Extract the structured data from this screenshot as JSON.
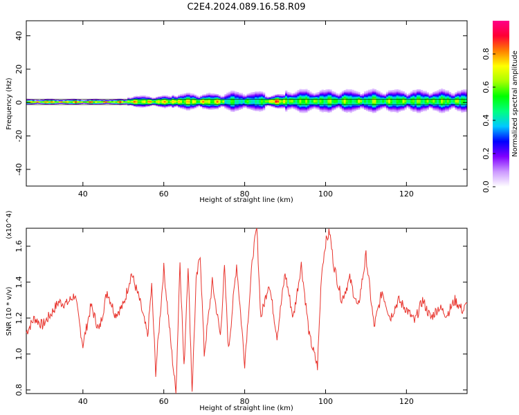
{
  "title": "C2E4.2024.089.16.58.R09",
  "chart_data": [
    {
      "type": "heatmap",
      "xlabel": "Height of straight line (km)",
      "ylabel": "Frequency (Hz)",
      "xlim": [
        26,
        135
      ],
      "ylim": [
        -50,
        49
      ],
      "xticks": [
        40,
        60,
        80,
        100,
        120
      ],
      "yticks": [
        -40,
        -20,
        0,
        20,
        40
      ],
      "colorbar": {
        "label": "Normalized spectral amplitude",
        "range": [
          0.0,
          1.0
        ],
        "ticks": [
          0.0,
          0.2,
          0.4,
          0.6,
          0.8
        ],
        "colormap": [
          "#ffffff",
          "#cc99ff",
          "#8000ff",
          "#0000ff",
          "#00c8ff",
          "#00ff80",
          "#00ff00",
          "#aaff00",
          "#ffff00",
          "#ff8000",
          "#ff0033",
          "#ff0088"
        ]
      },
      "bands": [
        {
          "x": [
            26,
            51
          ],
          "f_core": 0.6,
          "f_spread": 1.2,
          "amp": 0.95
        },
        {
          "x": [
            51,
            62
          ],
          "f_core": 1.0,
          "f_spread": 2.5,
          "amp": 0.88
        },
        {
          "x": [
            62,
            75
          ],
          "f_core": 1.2,
          "f_spread": 3.5,
          "amp": 0.85
        },
        {
          "x": [
            75,
            85
          ],
          "f_core": 1.5,
          "f_spread": 4.5,
          "amp": 0.6
        },
        {
          "x": [
            85,
            90
          ],
          "f_core": 1.5,
          "f_spread": 3.0,
          "amp": 0.95
        },
        {
          "x": [
            90,
            135
          ],
          "f_core": 2.0,
          "f_spread": 5.0,
          "amp": 0.7
        }
      ]
    },
    {
      "type": "line",
      "xlabel": "Height of straight line (km)",
      "ylabel": "SNR (10 * v/v)",
      "scale_label": "(x10^4)",
      "xlim": [
        26,
        135
      ],
      "ylim": [
        0.78,
        1.7
      ],
      "xticks": [
        40,
        60,
        80,
        100,
        120
      ],
      "yticks": [
        0.8,
        1.0,
        1.2,
        1.4,
        1.6
      ],
      "series": [
        {
          "color": "#e8322b",
          "x": [
            26,
            28,
            30,
            32,
            34,
            36,
            38,
            40,
            42,
            44,
            46,
            48,
            50,
            52,
            54,
            56,
            57,
            58,
            60,
            62,
            63,
            64,
            65,
            66,
            67,
            68,
            69,
            70,
            72,
            74,
            75,
            76,
            78,
            80,
            82,
            83,
            84,
            86,
            88,
            90,
            92,
            94,
            96,
            98,
            99,
            100,
            101,
            102,
            104,
            106,
            108,
            110,
            112,
            114,
            116,
            118,
            120,
            122,
            124,
            126,
            128,
            130,
            132,
            134,
            135
          ],
          "values": [
            1.12,
            1.2,
            1.16,
            1.22,
            1.29,
            1.28,
            1.33,
            1.05,
            1.27,
            1.13,
            1.35,
            1.22,
            1.27,
            1.45,
            1.3,
            1.1,
            1.38,
            0.9,
            1.48,
            1.0,
            0.78,
            1.52,
            0.92,
            1.5,
            0.8,
            1.4,
            1.56,
            1.0,
            1.4,
            1.1,
            1.48,
            1.02,
            1.5,
            0.95,
            1.55,
            1.7,
            1.2,
            1.4,
            1.1,
            1.45,
            1.2,
            1.5,
            1.1,
            0.93,
            1.45,
            1.62,
            1.68,
            1.5,
            1.3,
            1.42,
            1.25,
            1.55,
            1.15,
            1.35,
            1.2,
            1.3,
            1.25,
            1.18,
            1.3,
            1.2,
            1.26,
            1.22,
            1.3,
            1.24,
            1.28
          ]
        }
      ]
    }
  ]
}
